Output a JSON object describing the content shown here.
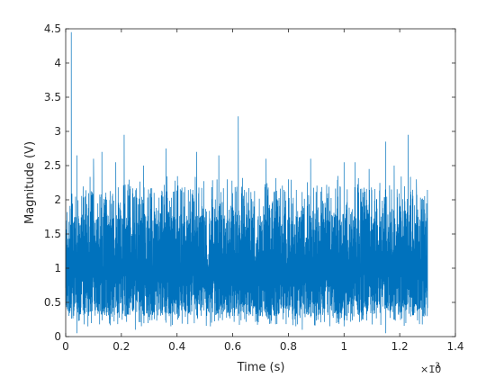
{
  "chart_data": {
    "type": "line",
    "title": "",
    "xlabel": "Time (s)",
    "ylabel": "Magnitude (V)",
    "x_multiplier_text": "×10",
    "x_multiplier_exponent": "-3",
    "xlim": [
      0,
      0.0014
    ],
    "ylim": [
      0,
      4.5
    ],
    "x_ticks": [
      0,
      0.0002,
      0.0004,
      0.0006,
      0.0008,
      0.001,
      0.0012,
      0.0014
    ],
    "x_tick_labels": [
      "0",
      "0.2",
      "0.4",
      "0.6",
      "0.8",
      "1",
      "1.2",
      "1.4"
    ],
    "y_ticks": [
      0,
      0.5,
      1,
      1.5,
      2,
      2.5,
      3,
      3.5,
      4,
      4.5
    ],
    "y_tick_labels": [
      "0",
      "0.5",
      "1",
      "1.5",
      "2",
      "2.5",
      "3",
      "3.5",
      "4",
      "4.5"
    ],
    "grid": false,
    "series": [
      {
        "color": "#0072bd",
        "x_start": 0,
        "x_end": 0.0013,
        "typical_range": [
          0.3,
          1.8
        ],
        "spikes": [
          [
            2e-05,
            4.45
          ],
          [
            4e-05,
            2.65
          ],
          [
            0.0001,
            2.6
          ],
          [
            0.00013,
            2.7
          ],
          [
            0.00018,
            2.55
          ],
          [
            0.00021,
            2.95
          ],
          [
            0.00028,
            2.5
          ],
          [
            0.00036,
            2.75
          ],
          [
            0.00047,
            2.7
          ],
          [
            0.00055,
            2.65
          ],
          [
            0.00058,
            2.3
          ],
          [
            0.00062,
            3.22
          ],
          [
            0.00072,
            2.6
          ],
          [
            0.0008,
            2.3
          ],
          [
            0.00088,
            2.6
          ],
          [
            0.001,
            2.55
          ],
          [
            0.00104,
            2.55
          ],
          [
            0.00109,
            2.45
          ],
          [
            0.00115,
            2.85
          ],
          [
            0.00118,
            2.5
          ],
          [
            0.00123,
            2.95
          ],
          [
            0.00126,
            2.3
          ]
        ],
        "dips": [
          [
            4e-05,
            0.05
          ],
          [
            8e-05,
            0.15
          ],
          [
            0.00025,
            0.1
          ],
          [
            0.00052,
            0.15
          ],
          [
            0.00085,
            0.1
          ],
          [
            0.001,
            0.15
          ],
          [
            0.00115,
            0.05
          ]
        ]
      }
    ]
  }
}
